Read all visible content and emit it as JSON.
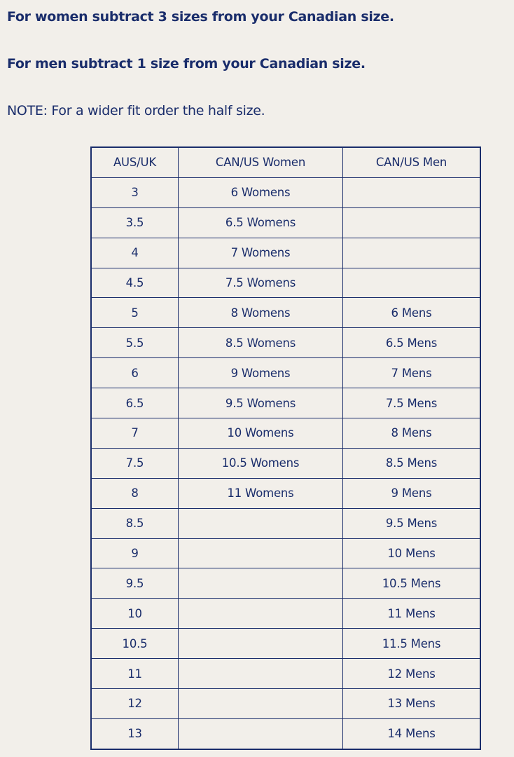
{
  "instructions": {
    "women": "For women subtract 3 sizes from your Canadian size.",
    "men": "For men subtract 1 size from your Canadian size.",
    "note": "NOTE: For a wider fit order the half size."
  },
  "colors": {
    "text": "#1a2d6b",
    "background": "#f2efea",
    "border": "#1a2d6b"
  },
  "table": {
    "headers": [
      "AUS/UK",
      "CAN/US Women",
      "CAN/US Men"
    ],
    "rows": [
      [
        "3",
        "6 Womens",
        ""
      ],
      [
        "3.5",
        "6.5 Womens",
        ""
      ],
      [
        "4",
        "7 Womens",
        ""
      ],
      [
        "4.5",
        "7.5 Womens",
        ""
      ],
      [
        "5",
        "8 Womens",
        "6 Mens"
      ],
      [
        "5.5",
        "8.5 Womens",
        "6.5 Mens"
      ],
      [
        "6",
        "9 Womens",
        "7 Mens"
      ],
      [
        "6.5",
        "9.5 Womens",
        "7.5 Mens"
      ],
      [
        "7",
        "10 Womens",
        "8 Mens"
      ],
      [
        "7.5",
        "10.5 Womens",
        "8.5 Mens"
      ],
      [
        "8",
        "11 Womens",
        "9 Mens"
      ],
      [
        "8.5",
        "",
        "9.5 Mens"
      ],
      [
        "9",
        "",
        "10 Mens"
      ],
      [
        "9.5",
        "",
        "10.5 Mens"
      ],
      [
        "10",
        "",
        "11 Mens"
      ],
      [
        "10.5",
        "",
        "11.5 Mens"
      ],
      [
        "11",
        "",
        "12 Mens"
      ],
      [
        "12",
        "",
        "13 Mens"
      ],
      [
        "13",
        "",
        "14 Mens"
      ]
    ]
  }
}
